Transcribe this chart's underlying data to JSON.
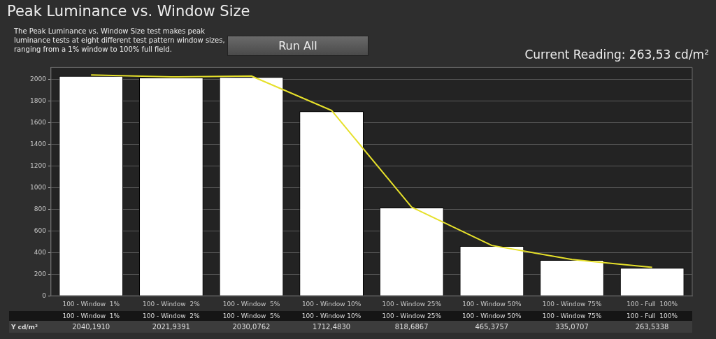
{
  "chart_data": {
    "type": "bar",
    "title": "Peak Luminance vs. Window Size",
    "subtitle": "The Peak Luminance vs. Window Size test makes peak luminance tests at eight different test pattern window sizes, ranging from a 1% window to 100% full field.",
    "annotations": [
      "Run All",
      "Current Reading: 263,53 cd/m²"
    ],
    "categories": [
      "100 - Window  1%",
      "100 - Window  2%",
      "100 - Window  5%",
      "100 - Window 10%",
      "100 - Window 25%",
      "100 - Window 50%",
      "100 - Window 75%",
      "100 - Full  100%"
    ],
    "series": [
      {
        "color": "#ffffff",
        "values": [
          2030,
          2015,
          2020,
          1705,
          815,
          460,
          330,
          258
        ]
      },
      {
        "type": "line",
        "name": "Y cd/m²",
        "color": "#e6e02a",
        "values": [
          2040.191,
          2021.9391,
          2030.0762,
          1712.483,
          818.6867,
          465.3757,
          335.0707,
          263.5338
        ],
        "value_labels": [
          "2040,1910",
          "2021,9391",
          "2030,0762",
          "1712,4830",
          "818,6867",
          "465,3757",
          "335,0707",
          "263,5338"
        ]
      }
    ],
    "ylim": [
      0,
      2110
    ],
    "yticks": [
      0,
      200,
      400,
      600,
      800,
      1000,
      1200,
      1400,
      1600,
      1800,
      2000
    ],
    "grid": "y",
    "legend": false,
    "marker": "none",
    "line_style": "solid"
  }
}
